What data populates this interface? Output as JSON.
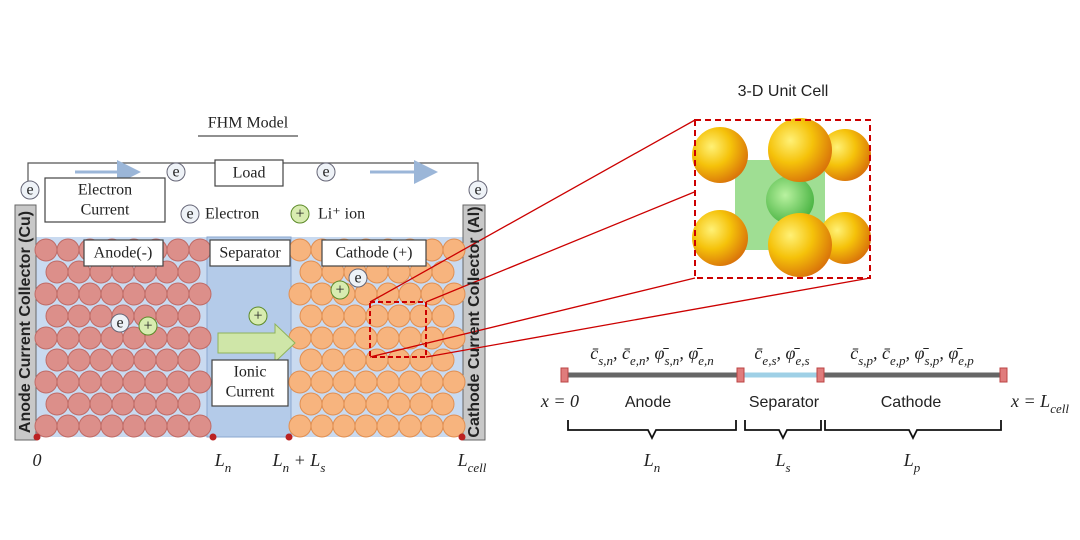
{
  "fhm_model": {
    "title": "FHM Model",
    "load": "Load",
    "electron_current": [
      "Electron",
      "Current"
    ],
    "legend": {
      "electron_symbol": "e",
      "electron": "Electron",
      "ion_symbol": "+",
      "ion": "Li⁺ ion"
    },
    "regions": {
      "anode": "Anode(-)",
      "separator": "Separator",
      "cathode": "Cathode (+)"
    },
    "ionic_current": [
      "Ionic",
      "Current"
    ],
    "anode_collector": "Anode Current Collector (Cu)",
    "cathode_collector": "Cathode Current Collector (Al)",
    "positions": [
      [
        {
          "text": "0"
        }
      ],
      [
        {
          "text": "L",
          "sub": "n"
        }
      ],
      [
        {
          "text": "L",
          "sub": "n"
        },
        {
          "text": " + L",
          "sub": "s"
        }
      ],
      [
        {
          "text": "L",
          "sub": "cell"
        }
      ]
    ]
  },
  "unit_cell": {
    "title": "3-D Unit Cell"
  },
  "domain": {
    "start": [
      {
        "text": "x = 0"
      }
    ],
    "end": [
      {
        "text": "x = L",
        "sub": "cell"
      }
    ],
    "regions": [
      "Anode",
      "Separator",
      "Cathode"
    ],
    "lengths": [
      [
        {
          "text": "L",
          "sub": "n"
        }
      ],
      [
        {
          "text": "L",
          "sub": "s"
        }
      ],
      [
        {
          "text": "L",
          "sub": "p"
        }
      ]
    ],
    "variables": [
      [
        {
          "text": "c̄",
          "sub": "s,n"
        },
        {
          "text": ", c̄",
          "sub": "e,n"
        },
        {
          "text": ", φ̄",
          "sub": "s,n"
        },
        {
          "text": ", φ̄",
          "sub": "e,n"
        }
      ],
      [
        {
          "text": "c̄",
          "sub": "e,s"
        },
        {
          "text": ", φ̄",
          "sub": "e,s"
        }
      ],
      [
        {
          "text": "c̄",
          "sub": "s,p"
        },
        {
          "text": ", c̄",
          "sub": "e,p"
        },
        {
          "text": ", φ̄",
          "sub": "s,p"
        },
        {
          "text": ", φ̄",
          "sub": "e,p"
        }
      ]
    ]
  }
}
